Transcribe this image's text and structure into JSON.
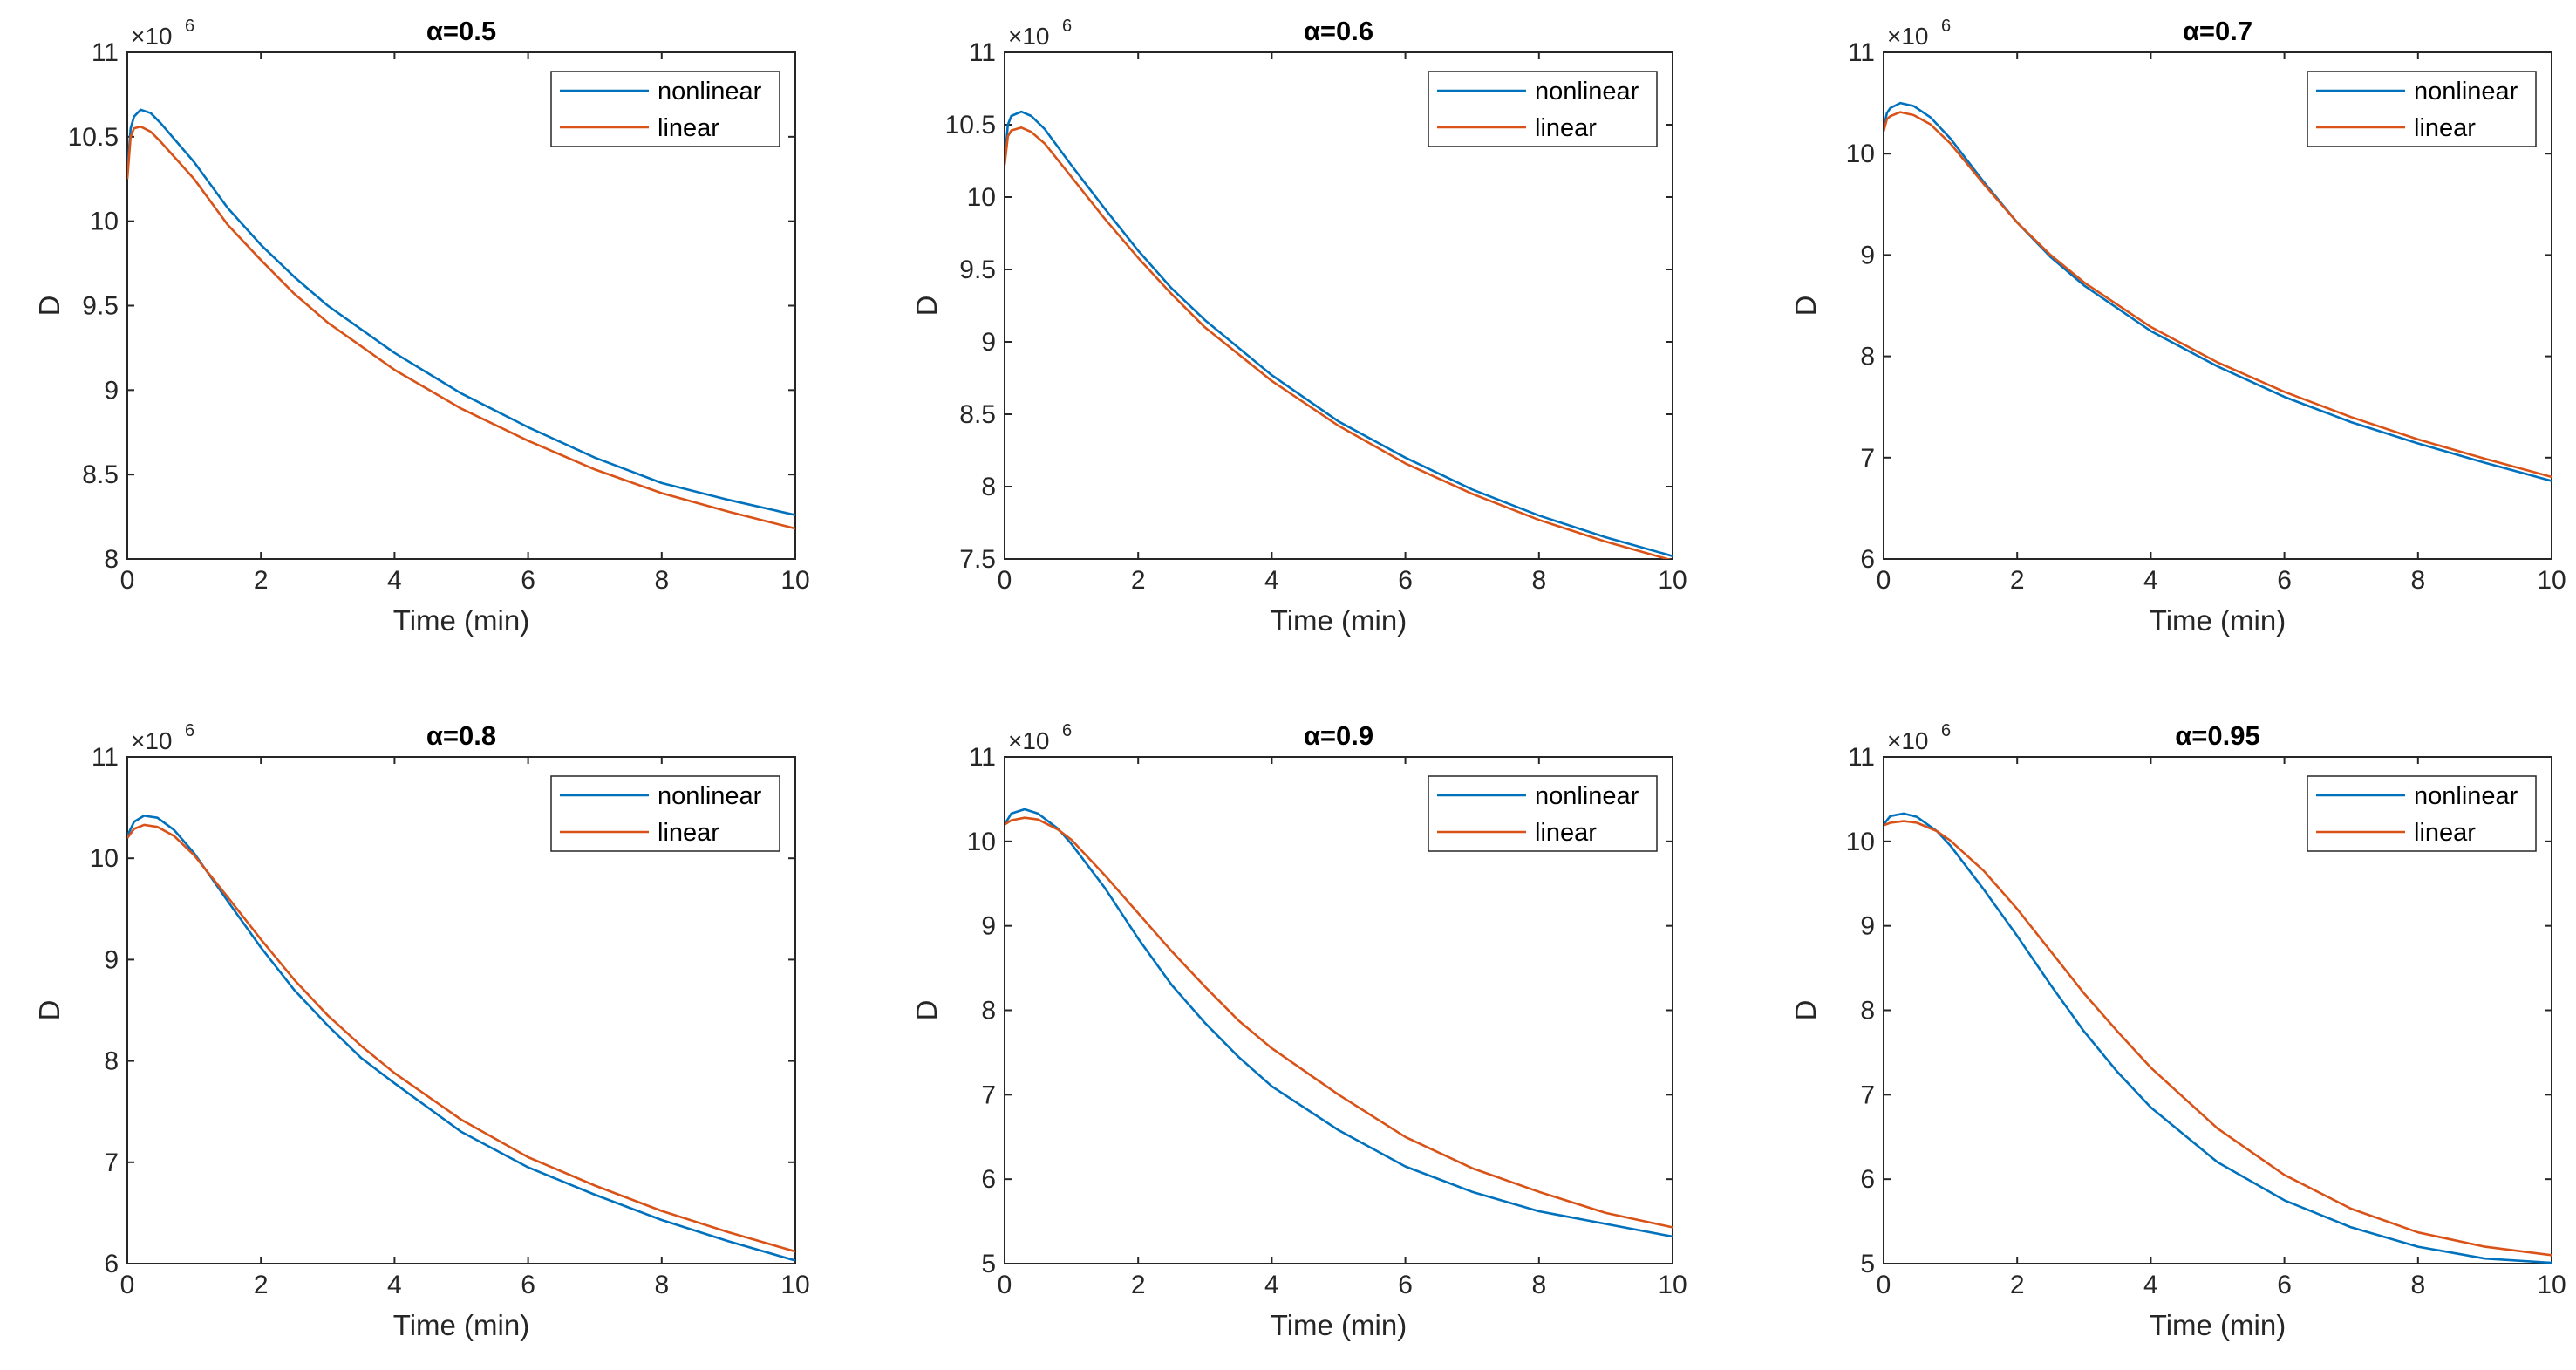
{
  "chart_data": [
    {
      "type": "line",
      "title_symbol": "α",
      "title_value": "=0.5",
      "title": "α=0.5",
      "xlabel": "Time (min)",
      "ylabel": "D",
      "exponent_base": "×10",
      "exponent_power": "6",
      "xlim": [
        0,
        10
      ],
      "ylim": [
        8,
        11
      ],
      "xticks": [
        "0",
        "2",
        "4",
        "6",
        "8",
        "10"
      ],
      "yticks": [
        "8",
        "8.5",
        "9",
        "9.5",
        "10",
        "10.5",
        "11"
      ],
      "legend": {
        "position": "top-right"
      },
      "x": [
        0,
        0.05,
        0.1,
        0.2,
        0.35,
        0.5,
        1,
        1.5,
        2,
        2.5,
        3,
        4,
        5,
        6,
        7,
        8,
        9,
        10
      ],
      "series": [
        {
          "name": "nonlinear",
          "color": "#0072BD",
          "values": [
            10.28,
            10.55,
            10.62,
            10.66,
            10.64,
            10.58,
            10.35,
            10.08,
            9.86,
            9.67,
            9.5,
            9.22,
            8.98,
            8.78,
            8.6,
            8.45,
            8.35,
            8.26
          ]
        },
        {
          "name": "linear",
          "color": "#D95319",
          "values": [
            10.25,
            10.5,
            10.55,
            10.56,
            10.53,
            10.47,
            10.25,
            9.98,
            9.77,
            9.57,
            9.4,
            9.12,
            8.89,
            8.7,
            8.53,
            8.39,
            8.28,
            8.18
          ]
        }
      ]
    },
    {
      "type": "line",
      "title_symbol": "α",
      "title_value": "=0.6",
      "title": "α=0.6",
      "xlabel": "Time (min)",
      "ylabel": "D",
      "exponent_base": "×10",
      "exponent_power": "6",
      "xlim": [
        0,
        10
      ],
      "ylim": [
        7.5,
        11
      ],
      "xticks": [
        "0",
        "2",
        "4",
        "6",
        "8",
        "10"
      ],
      "yticks": [
        "7.5",
        "8",
        "8.5",
        "9",
        "9.5",
        "10",
        "10.5",
        "11"
      ],
      "legend": {
        "position": "top-right"
      },
      "x": [
        0,
        0.05,
        0.1,
        0.25,
        0.4,
        0.6,
        1,
        1.5,
        2,
        2.5,
        3,
        4,
        5,
        6,
        7,
        8,
        9,
        10
      ],
      "series": [
        {
          "name": "nonlinear",
          "color": "#0072BD",
          "values": [
            10.25,
            10.5,
            10.56,
            10.59,
            10.56,
            10.47,
            10.22,
            9.92,
            9.63,
            9.37,
            9.15,
            8.77,
            8.45,
            8.2,
            7.98,
            7.8,
            7.65,
            7.52
          ]
        },
        {
          "name": "linear",
          "color": "#D95319",
          "values": [
            10.22,
            10.42,
            10.46,
            10.48,
            10.45,
            10.37,
            10.14,
            9.85,
            9.58,
            9.33,
            9.1,
            8.73,
            8.42,
            8.16,
            7.95,
            7.77,
            7.62,
            7.49
          ]
        }
      ]
    },
    {
      "type": "line",
      "title_symbol": "α",
      "title_value": "=0.7",
      "title": "α=0.7",
      "xlabel": "Time (min)",
      "ylabel": "D",
      "exponent_base": "×10",
      "exponent_power": "6",
      "xlim": [
        0,
        10
      ],
      "ylim": [
        6,
        11
      ],
      "xticks": [
        "0",
        "2",
        "4",
        "6",
        "8",
        "10"
      ],
      "yticks": [
        "6",
        "7",
        "8",
        "9",
        "10",
        "11"
      ],
      "legend": {
        "position": "top-right"
      },
      "x": [
        0,
        0.05,
        0.1,
        0.25,
        0.45,
        0.7,
        1,
        1.5,
        2,
        2.5,
        3,
        4,
        5,
        6,
        7,
        8,
        9,
        10
      ],
      "series": [
        {
          "name": "nonlinear",
          "color": "#0072BD",
          "values": [
            10.25,
            10.4,
            10.45,
            10.5,
            10.47,
            10.36,
            10.15,
            9.72,
            9.32,
            8.98,
            8.7,
            8.25,
            7.9,
            7.6,
            7.35,
            7.14,
            6.95,
            6.77
          ]
        },
        {
          "name": "linear",
          "color": "#D95319",
          "values": [
            10.22,
            10.34,
            10.37,
            10.41,
            10.38,
            10.29,
            10.1,
            9.7,
            9.32,
            9.0,
            8.73,
            8.29,
            7.94,
            7.65,
            7.4,
            7.18,
            6.99,
            6.81
          ]
        }
      ]
    },
    {
      "type": "line",
      "title_symbol": "α",
      "title_value": "=0.8",
      "title": "α=0.8",
      "xlabel": "Time (min)",
      "ylabel": "D",
      "exponent_base": "×10",
      "exponent_power": "6",
      "xlim": [
        0,
        10
      ],
      "ylim": [
        6,
        11
      ],
      "xticks": [
        "0",
        "2",
        "4",
        "6",
        "8",
        "10"
      ],
      "yticks": [
        "6",
        "7",
        "8",
        "9",
        "10",
        "11"
      ],
      "legend": {
        "position": "top-right"
      },
      "x": [
        0,
        0.1,
        0.25,
        0.45,
        0.7,
        1,
        1.5,
        2,
        2.5,
        3,
        3.5,
        4,
        5,
        6,
        7,
        8,
        9,
        10
      ],
      "series": [
        {
          "name": "nonlinear",
          "color": "#0072BD",
          "values": [
            10.22,
            10.36,
            10.42,
            10.4,
            10.28,
            10.05,
            9.58,
            9.12,
            8.7,
            8.35,
            8.03,
            7.78,
            7.3,
            6.95,
            6.68,
            6.43,
            6.22,
            6.03
          ]
        },
        {
          "name": "linear",
          "color": "#D95319",
          "values": [
            10.2,
            10.29,
            10.33,
            10.31,
            10.22,
            10.03,
            9.62,
            9.2,
            8.8,
            8.45,
            8.15,
            7.88,
            7.42,
            7.05,
            6.77,
            6.52,
            6.31,
            6.12
          ]
        }
      ]
    },
    {
      "type": "line",
      "title_symbol": "α",
      "title_value": "=0.9",
      "title": "α=0.9",
      "xlabel": "Time (min)",
      "ylabel": "D",
      "exponent_base": "×10",
      "exponent_power": "6",
      "xlim": [
        0,
        10
      ],
      "ylim": [
        5,
        11
      ],
      "xticks": [
        "0",
        "2",
        "4",
        "6",
        "8",
        "10"
      ],
      "yticks": [
        "5",
        "6",
        "7",
        "8",
        "9",
        "10",
        "11"
      ],
      "legend": {
        "position": "top-right"
      },
      "x": [
        0,
        0.1,
        0.3,
        0.5,
        0.8,
        1,
        1.5,
        2,
        2.5,
        3,
        3.5,
        4,
        5,
        6,
        7,
        8,
        9,
        10
      ],
      "series": [
        {
          "name": "nonlinear",
          "color": "#0072BD",
          "values": [
            10.2,
            10.33,
            10.38,
            10.33,
            10.15,
            9.97,
            9.45,
            8.85,
            8.3,
            7.85,
            7.45,
            7.1,
            6.58,
            6.15,
            5.85,
            5.62,
            5.47,
            5.32
          ]
        },
        {
          "name": "linear",
          "color": "#D95319",
          "values": [
            10.2,
            10.25,
            10.28,
            10.26,
            10.14,
            10.02,
            9.6,
            9.15,
            8.7,
            8.28,
            7.88,
            7.55,
            7.0,
            6.5,
            6.13,
            5.85,
            5.6,
            5.43
          ]
        }
      ]
    },
    {
      "type": "line",
      "title_symbol": "α",
      "title_value": "=0.95",
      "title": "α=0.95",
      "xlabel": "Time (min)",
      "ylabel": "D",
      "exponent_base": "×10",
      "exponent_power": "6",
      "xlim": [
        0,
        10
      ],
      "ylim": [
        5,
        11
      ],
      "xticks": [
        "0",
        "2",
        "4",
        "6",
        "8",
        "10"
      ],
      "yticks": [
        "5",
        "6",
        "7",
        "8",
        "9",
        "10",
        "11"
      ],
      "legend": {
        "position": "top-right"
      },
      "x": [
        0,
        0.1,
        0.3,
        0.5,
        0.8,
        1,
        1.5,
        2,
        2.5,
        3,
        3.5,
        4,
        5,
        6,
        7,
        8,
        9,
        10
      ],
      "series": [
        {
          "name": "nonlinear",
          "color": "#0072BD",
          "values": [
            10.2,
            10.3,
            10.33,
            10.29,
            10.12,
            9.95,
            9.43,
            8.88,
            8.3,
            7.75,
            7.27,
            6.85,
            6.2,
            5.75,
            5.43,
            5.2,
            5.06,
            5.01
          ]
        },
        {
          "name": "linear",
          "color": "#D95319",
          "values": [
            10.19,
            10.22,
            10.24,
            10.22,
            10.12,
            10.01,
            9.65,
            9.2,
            8.7,
            8.2,
            7.75,
            7.32,
            6.6,
            6.05,
            5.65,
            5.37,
            5.2,
            5.1
          ]
        }
      ]
    }
  ]
}
